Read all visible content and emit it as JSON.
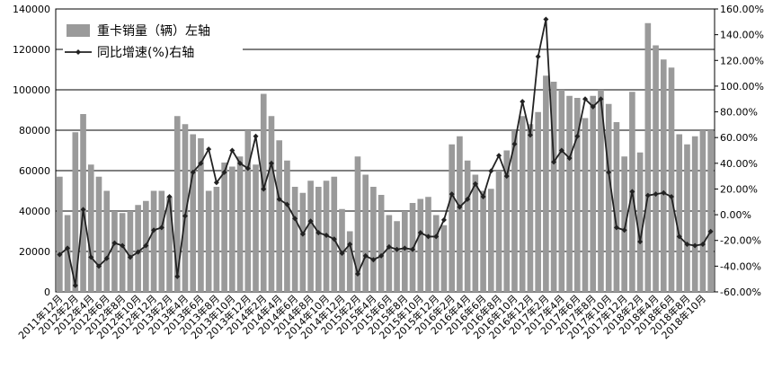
{
  "chart_data": {
    "type": "bar-line",
    "categories": [
      "2011年12月",
      null,
      "2012年2月",
      null,
      "2012年4月",
      null,
      "2012年6月",
      null,
      "2012年8月",
      null,
      "2012年10月",
      null,
      "2012年12月",
      null,
      "2013年2月",
      null,
      "2013年4月",
      null,
      "2013年6月",
      null,
      "2013年8月",
      null,
      "2013年10月",
      null,
      "2013年12月",
      null,
      "2014年2月",
      null,
      "2014年4月",
      null,
      "2014年6月",
      null,
      "2014年8月",
      null,
      "2014年10月",
      null,
      "2014年12月",
      null,
      "2015年2月",
      null,
      "2015年4月",
      null,
      "2015年6月",
      null,
      "2015年8月",
      null,
      "2015年10月",
      null,
      "2015年12月",
      null,
      "2016年2月",
      null,
      "2016年4月",
      null,
      "2016年6月",
      null,
      "2016年8月",
      null,
      "2016年10月",
      null,
      "2016年12月",
      null,
      "2017年2月",
      null,
      "2017年4月",
      null,
      "2017年6月",
      null,
      "2017年8月",
      null,
      "2017年10月",
      null,
      "2017年12月",
      null,
      "2018年2月",
      null,
      "2018年4月",
      null,
      "2018年6月",
      null,
      "2018年8月",
      null,
      "2018年10月",
      null
    ],
    "series": [
      {
        "name": "重卡销量（辆）左轴",
        "color": "#9a9a9a",
        "kind": "bar",
        "values": [
          57000,
          38000,
          79000,
          88000,
          63000,
          57000,
          50000,
          40000,
          39000,
          40000,
          43000,
          45000,
          50000,
          50000,
          47000,
          87000,
          83000,
          78000,
          76000,
          50000,
          52000,
          64000,
          62000,
          67000,
          80000,
          63000,
          98000,
          87000,
          75000,
          65000,
          52000,
          49000,
          55000,
          52000,
          55000,
          57000,
          41000,
          30000,
          67000,
          58000,
          52000,
          48000,
          38000,
          35000,
          40000,
          44000,
          46000,
          47000,
          38000,
          33000,
          73000,
          77000,
          65000,
          58000,
          50000,
          51000,
          60000,
          70000,
          80000,
          87000,
          83000,
          89000,
          107000,
          104000,
          100000,
          97000,
          96000,
          86000,
          97000,
          100000,
          93000,
          84000,
          67000,
          99000,
          69000,
          133000,
          122000,
          115000,
          111000,
          78000,
          73000,
          77000,
          80000,
          80000
        ]
      },
      {
        "name": "同比增速(%)右轴",
        "color": "#222222",
        "kind": "line",
        "axis": "y2",
        "values": [
          -31,
          -26,
          -55,
          4,
          -33,
          -40,
          -34,
          -22,
          -24,
          -33,
          -29,
          -24,
          -12,
          -10,
          14,
          -48,
          -1,
          33,
          40,
          51,
          25,
          33,
          50,
          40,
          36,
          61,
          20,
          40,
          12,
          8,
          -3,
          -15,
          -5,
          -14,
          -16,
          -19,
          -30,
          -23,
          -46,
          -32,
          -35,
          -32,
          -25,
          -27,
          -26,
          -27,
          -14,
          -17,
          -17,
          -4,
          16,
          6,
          12,
          24,
          14,
          34,
          46,
          30,
          55,
          88,
          62,
          123,
          152,
          41,
          50,
          44,
          61,
          90,
          84,
          90,
          33,
          -10,
          -12,
          18,
          -21,
          15,
          16,
          17,
          14,
          -17,
          -23,
          -24,
          -23,
          -13
        ]
      }
    ],
    "ylim": [
      0,
      140000
    ],
    "yticks": [
      0,
      20000,
      40000,
      60000,
      80000,
      100000,
      120000,
      140000
    ],
    "y2lim": [
      -60,
      160
    ],
    "y2ticks": [
      {
        "value": -60,
        "label": "-60.00%"
      },
      {
        "value": -40,
        "label": "-40.00%"
      },
      {
        "value": -20,
        "label": "-20.00%"
      },
      {
        "value": 0,
        "label": "0.00%"
      },
      {
        "value": 20,
        "label": "20.00%"
      },
      {
        "value": 40,
        "label": "40.00%"
      },
      {
        "value": 60,
        "label": "60.00%"
      },
      {
        "value": 80,
        "label": "80.00%"
      },
      {
        "value": 100,
        "label": "100.00%"
      },
      {
        "value": 120,
        "label": "120.00%"
      },
      {
        "value": 140,
        "label": "140.00%"
      },
      {
        "value": 160,
        "label": "160.00%"
      }
    ],
    "grid": true,
    "legend": "top-left"
  }
}
